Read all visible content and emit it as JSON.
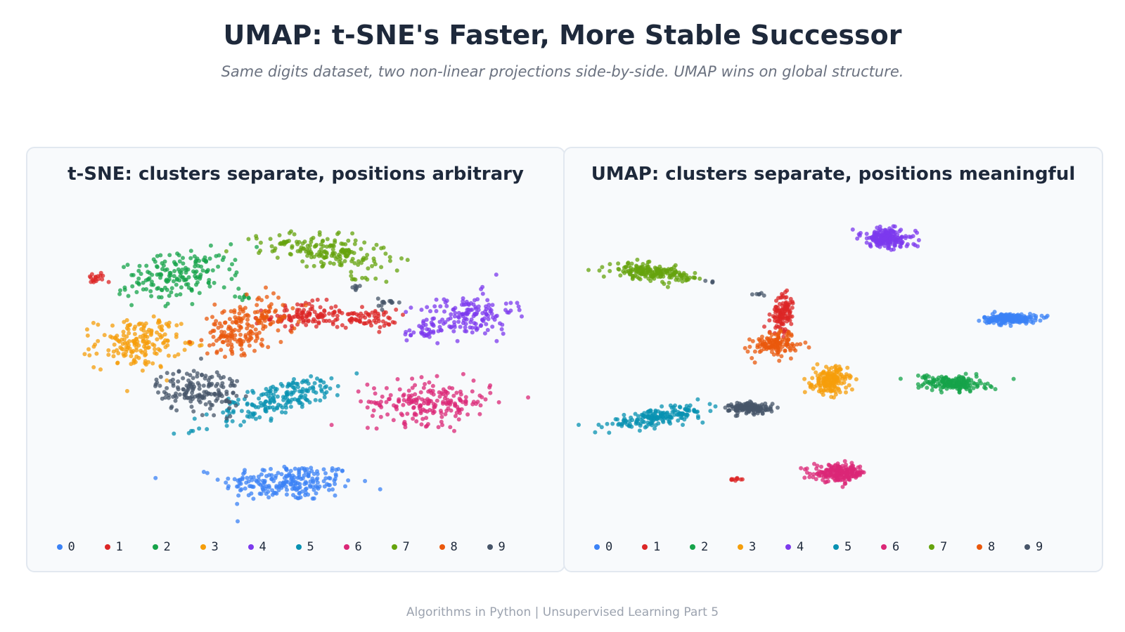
{
  "header": {
    "title": "UMAP: t-SNE's Faster, More Stable Successor",
    "subtitle": "Same digits dataset, two non-linear projections side-by-side. UMAP wins on global structure."
  },
  "footer": {
    "text": "Algorithms in Python  |  Unsupervised Learning Part 5"
  },
  "colors": {
    "0": "#3b82f6",
    "1": "#dc2626",
    "2": "#16a34a",
    "3": "#f59e0b",
    "4": "#7c3aed",
    "5": "#0891b2",
    "6": "#db2777",
    "7": "#65a30d",
    "8": "#ea580c",
    "9": "#475569"
  },
  "chart_data": [
    {
      "type": "scatter",
      "title": "t-SNE: clusters separate, positions arbitrary",
      "legend": {
        "placement": "bottom",
        "entries": [
          "0",
          "1",
          "2",
          "3",
          "4",
          "5",
          "6",
          "7",
          "8",
          "9"
        ]
      },
      "grid": false,
      "xlim": [
        0,
        100
      ],
      "ylim": [
        0,
        100
      ],
      "clusters": [
        {
          "label": "0",
          "cx": 48,
          "cy": 10,
          "sx": 7,
          "sy": 3,
          "angle": 0,
          "n": 220
        },
        {
          "label": "1",
          "cx": 51,
          "cy": 64,
          "sx": 4,
          "sy": 2,
          "angle": 5,
          "n": 110
        },
        {
          "label": "1",
          "cx": 64,
          "cy": 63,
          "sx": 3.5,
          "sy": 1.5,
          "angle": 0,
          "n": 70
        },
        {
          "label": "1",
          "cx": 7,
          "cy": 76,
          "sx": 1,
          "sy": 1,
          "angle": 0,
          "n": 18
        },
        {
          "label": "2",
          "cx": 25,
          "cy": 77,
          "sx": 6,
          "sy": 3.5,
          "angle": 15,
          "n": 170
        },
        {
          "label": "2",
          "cx": 38,
          "cy": 70,
          "sx": 1,
          "sy": 0.5,
          "angle": 0,
          "n": 8
        },
        {
          "label": "3",
          "cx": 16,
          "cy": 55,
          "sx": 4.5,
          "sy": 4,
          "angle": 0,
          "n": 170
        },
        {
          "label": "3",
          "cx": 22,
          "cy": 61,
          "sx": 1.5,
          "sy": 0.6,
          "angle": 0,
          "n": 8
        },
        {
          "label": "3",
          "cx": 27,
          "cy": 55,
          "sx": 0.8,
          "sy": 0.8,
          "angle": 0,
          "n": 6
        },
        {
          "label": "4",
          "cx": 86,
          "cy": 64,
          "sx": 5,
          "sy": 3.5,
          "angle": 10,
          "n": 150
        },
        {
          "label": "4",
          "cx": 77,
          "cy": 59,
          "sx": 2.5,
          "sy": 1.2,
          "angle": 15,
          "n": 30
        },
        {
          "label": "5",
          "cx": 46,
          "cy": 37,
          "sx": 8,
          "sy": 2.5,
          "angle": 28,
          "n": 190
        },
        {
          "label": "6",
          "cx": 78,
          "cy": 36,
          "sx": 6.5,
          "sy": 3.5,
          "angle": 0,
          "n": 200
        },
        {
          "label": "7",
          "cx": 56,
          "cy": 85,
          "sx": 7,
          "sy": 2.5,
          "angle": -12,
          "n": 180
        },
        {
          "label": "7",
          "cx": 63,
          "cy": 76,
          "sx": 1.2,
          "sy": 0.6,
          "angle": 0,
          "n": 8
        },
        {
          "label": "8",
          "cx": 40,
          "cy": 62,
          "sx": 5,
          "sy": 3.5,
          "angle": 25,
          "n": 130
        },
        {
          "label": "8",
          "cx": 36,
          "cy": 56,
          "sx": 3,
          "sy": 2.5,
          "angle": 0,
          "n": 60
        },
        {
          "label": "9",
          "cx": 29,
          "cy": 40,
          "sx": 4.5,
          "sy": 3.5,
          "angle": 0,
          "n": 160
        },
        {
          "label": "9",
          "cx": 69,
          "cy": 68,
          "sx": 1,
          "sy": 0.8,
          "angle": 0,
          "n": 14
        },
        {
          "label": "9",
          "cx": 62,
          "cy": 73,
          "sx": 0.8,
          "sy": 0.6,
          "angle": 0,
          "n": 7
        }
      ]
    },
    {
      "type": "scatter",
      "title": "UMAP: clusters separate, positions meaningful",
      "legend": {
        "placement": "bottom",
        "entries": [
          "0",
          "1",
          "2",
          "3",
          "4",
          "5",
          "6",
          "7",
          "8",
          "9"
        ]
      },
      "grid": false,
      "xlim": [
        0,
        100
      ],
      "ylim": [
        0,
        100
      ],
      "clusters": [
        {
          "label": "0",
          "cx": 87,
          "cy": 63,
          "sx": 2.8,
          "sy": 0.8,
          "angle": 0,
          "n": 200
        },
        {
          "label": "1",
          "cx": 39,
          "cy": 65,
          "sx": 1.2,
          "sy": 3,
          "angle": -10,
          "n": 110
        },
        {
          "label": "1",
          "cx": 29,
          "cy": 11,
          "sx": 0.6,
          "sy": 0.3,
          "angle": 0,
          "n": 10
        },
        {
          "label": "2",
          "cx": 75,
          "cy": 42,
          "sx": 3.5,
          "sy": 1.2,
          "angle": -5,
          "n": 180
        },
        {
          "label": "2",
          "cx": 69,
          "cy": 44,
          "sx": 0.7,
          "sy": 0.4,
          "angle": 0,
          "n": 6
        },
        {
          "label": "3",
          "cx": 49,
          "cy": 43,
          "sx": 1.8,
          "sy": 2.2,
          "angle": 0,
          "n": 170
        },
        {
          "label": "3",
          "cx": 45,
          "cy": 41,
          "sx": 0.5,
          "sy": 0.3,
          "angle": 0,
          "n": 5
        },
        {
          "label": "4",
          "cx": 61,
          "cy": 89,
          "sx": 2.8,
          "sy": 1.6,
          "angle": -12,
          "n": 190
        },
        {
          "label": "5",
          "cx": 12,
          "cy": 31,
          "sx": 5.5,
          "sy": 1.2,
          "angle": 15,
          "n": 180
        },
        {
          "label": "6",
          "cx": 51,
          "cy": 13,
          "sx": 2.8,
          "sy": 1.3,
          "angle": 0,
          "n": 200
        },
        {
          "label": "7",
          "cx": 11,
          "cy": 78,
          "sx": 4,
          "sy": 1.2,
          "angle": -8,
          "n": 180
        },
        {
          "label": "7",
          "cx": 19,
          "cy": 76,
          "sx": 0.8,
          "sy": 0.3,
          "angle": 0,
          "n": 6
        },
        {
          "label": "8",
          "cx": 37,
          "cy": 55,
          "sx": 2.5,
          "sy": 1.8,
          "angle": 20,
          "n": 130
        },
        {
          "label": "9",
          "cx": 32,
          "cy": 34,
          "sx": 2.2,
          "sy": 0.9,
          "angle": 0,
          "n": 150
        },
        {
          "label": "9",
          "cx": 34,
          "cy": 71,
          "sx": 0.7,
          "sy": 0.3,
          "angle": 0,
          "n": 6
        },
        {
          "label": "9",
          "cx": 23,
          "cy": 75,
          "sx": 0.5,
          "sy": 0.3,
          "angle": 0,
          "n": 4
        }
      ]
    }
  ]
}
